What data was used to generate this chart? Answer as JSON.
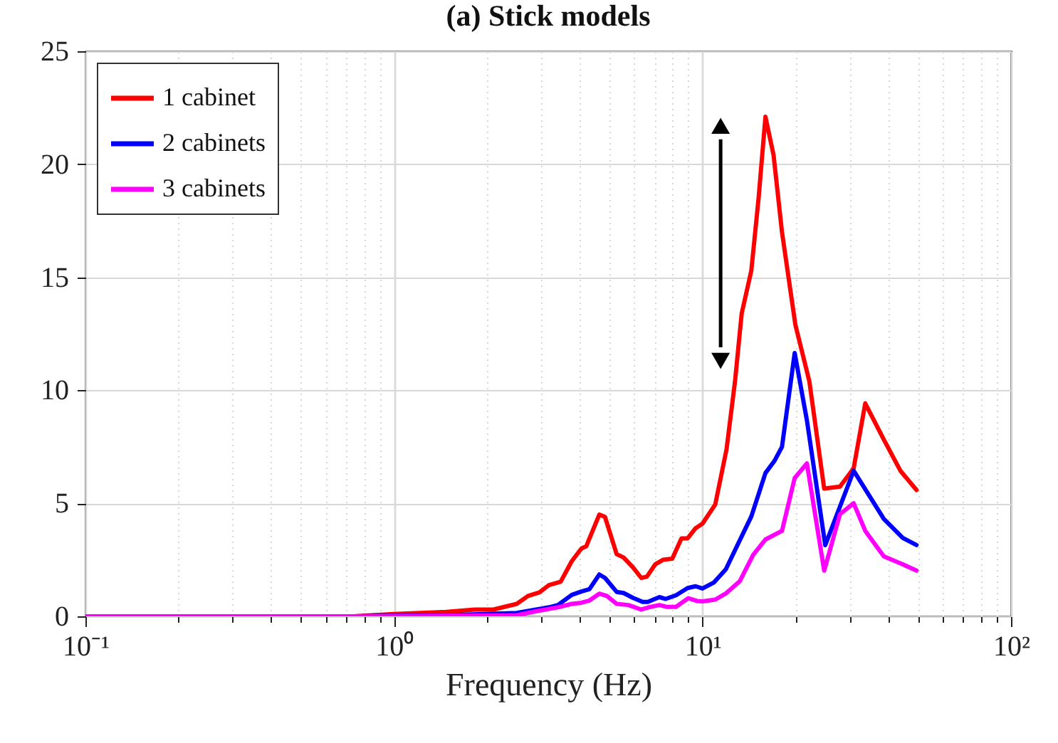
{
  "chart_data": {
    "type": "line",
    "title": "(a) Stick models",
    "xlabel": "Frequency (Hz)",
    "log": "x",
    "grid": true,
    "legend": "top left",
    "xlim": [
      0.1,
      100
    ],
    "ylim": [
      0,
      25
    ],
    "xticks": [
      {
        "value": 0.1,
        "label": "10⁻¹"
      },
      {
        "value": 0.2,
        "label": null
      },
      {
        "value": 0.3,
        "label": null
      },
      {
        "value": 0.4,
        "label": null
      },
      {
        "value": 0.5,
        "label": null
      },
      {
        "value": 0.6,
        "label": null
      },
      {
        "value": 0.7,
        "label": null
      },
      {
        "value": 0.8,
        "label": null
      },
      {
        "value": 0.9,
        "label": null
      },
      {
        "value": 1,
        "label": "10⁰"
      },
      {
        "value": 2,
        "label": null
      },
      {
        "value": 3,
        "label": null
      },
      {
        "value": 4,
        "label": null
      },
      {
        "value": 5,
        "label": null
      },
      {
        "value": 6,
        "label": null
      },
      {
        "value": 7,
        "label": null
      },
      {
        "value": 8,
        "label": null
      },
      {
        "value": 9,
        "label": null
      },
      {
        "value": 10,
        "label": "10¹"
      },
      {
        "value": 20,
        "label": null
      },
      {
        "value": 30,
        "label": null
      },
      {
        "value": 40,
        "label": null
      },
      {
        "value": 50,
        "label": null
      },
      {
        "value": 60,
        "label": null
      },
      {
        "value": 70,
        "label": null
      },
      {
        "value": 80,
        "label": null
      },
      {
        "value": 90,
        "label": null
      },
      {
        "value": 100,
        "label": "10²"
      }
    ],
    "yticks": [
      0,
      5,
      10,
      15,
      20,
      25
    ],
    "series": [
      {
        "name": "1 cabinet",
        "color": "#ff0000",
        "x": [
          0.1,
          0.3,
          0.74,
          1.0,
          1.48,
          1.83,
          2.1,
          2.5,
          2.72,
          2.96,
          3.18,
          3.47,
          3.77,
          4.05,
          4.2,
          4.63,
          4.83,
          5.27,
          5.55,
          5.95,
          6.33,
          6.6,
          7.03,
          7.45,
          7.98,
          8.55,
          8.95,
          9.5,
          10,
          11.0,
          11.97,
          12.75,
          13.4,
          14.4,
          15.2,
          16.0,
          17.0,
          18.1,
          20.0,
          22.2,
          24.8,
          27.9,
          30.9,
          33.7,
          38.7,
          43.8,
          49.4
        ],
        "values": [
          0,
          0,
          0,
          0.1,
          0.2,
          0.3,
          0.3,
          0.55,
          0.9,
          1.06,
          1.38,
          1.53,
          2.44,
          3.0,
          3.1,
          4.5,
          4.4,
          2.75,
          2.6,
          2.17,
          1.7,
          1.75,
          2.3,
          2.5,
          2.55,
          3.45,
          3.45,
          3.9,
          4.1,
          4.95,
          7.4,
          10.4,
          13.4,
          15.3,
          18.5,
          22.1,
          20.4,
          17.0,
          12.9,
          10.4,
          5.65,
          5.74,
          6.55,
          9.42,
          7.82,
          6.44,
          5.59
        ]
      },
      {
        "name": "2 cabinets",
        "color": "#0000ff",
        "x": [
          0.74,
          1.48,
          2.5,
          3.18,
          3.4,
          3.77,
          4.05,
          4.3,
          4.63,
          4.83,
          5.27,
          5.55,
          5.95,
          6.4,
          6.65,
          7.25,
          7.6,
          8.2,
          8.95,
          9.5,
          10,
          10.9,
          11.9,
          12.75,
          14.4,
          16.0,
          17.1,
          18.1,
          19.9,
          21.8,
          25.0,
          30.9,
          38.7,
          44.6,
          49.4
        ],
        "values": [
          0,
          0.05,
          0.15,
          0.4,
          0.5,
          0.95,
          1.1,
          1.2,
          1.85,
          1.7,
          1.08,
          1.03,
          0.82,
          0.64,
          0.64,
          0.85,
          0.77,
          0.93,
          1.25,
          1.33,
          1.23,
          1.5,
          2.08,
          2.93,
          4.42,
          6.34,
          6.87,
          7.5,
          11.65,
          8.67,
          3.15,
          6.44,
          4.31,
          3.47,
          3.15
        ]
      },
      {
        "name": "3 cabinets",
        "color": "#ff00ff",
        "x": [
          0.1,
          0.3,
          0.74,
          2.5,
          2.96,
          3.4,
          3.77,
          4.05,
          4.3,
          4.63,
          4.9,
          5.27,
          5.75,
          6.33,
          6.7,
          7.25,
          7.65,
          8.2,
          9.0,
          9.6,
          10,
          11.0,
          11.9,
          13.2,
          14.6,
          16.0,
          18.1,
          19.9,
          21.8,
          24.8,
          27.9,
          30.9,
          33.7,
          38.7,
          44.6,
          49.4
        ],
        "values": [
          0,
          0,
          0,
          0.05,
          0.25,
          0.4,
          0.55,
          0.6,
          0.7,
          1.0,
          0.9,
          0.55,
          0.5,
          0.3,
          0.4,
          0.5,
          0.42,
          0.42,
          0.8,
          0.68,
          0.66,
          0.74,
          1.01,
          1.55,
          2.72,
          3.4,
          3.78,
          6.12,
          6.76,
          2.02,
          4.52,
          5.0,
          3.78,
          2.65,
          2.3,
          2.02
        ]
      }
    ]
  }
}
